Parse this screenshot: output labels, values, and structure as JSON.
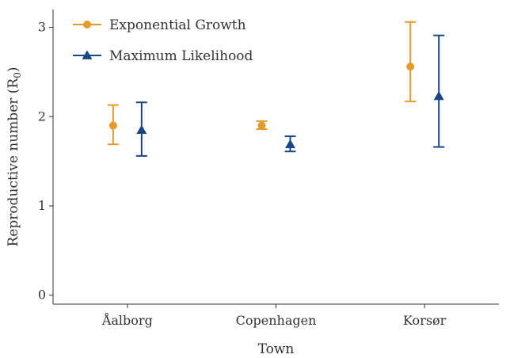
{
  "chart_data": {
    "type": "scatter",
    "xlabel": "Town",
    "ylabel_main": "Reproductive number (R",
    "ylabel_sub": "0",
    "ylabel_close": ")",
    "categories": [
      "Åalborg",
      "Copenhagen",
      "Korsør"
    ],
    "ylim": [
      -0.1,
      3.2
    ],
    "yticks": [
      0,
      1,
      2,
      3
    ],
    "grid": false,
    "legend_position": "top-left",
    "series": [
      {
        "name": "Exponential Growth",
        "color": "#E69A2A",
        "marker": "circle",
        "values": [
          1.9,
          1.9,
          2.56
        ],
        "lower": [
          1.69,
          1.86,
          2.17
        ],
        "upper": [
          2.13,
          1.95,
          3.06
        ]
      },
      {
        "name": "Maximum Likelihood",
        "color": "#1A4784",
        "marker": "triangle",
        "values": [
          1.85,
          1.69,
          2.23
        ],
        "lower": [
          1.56,
          1.61,
          1.66
        ],
        "upper": [
          2.16,
          1.78,
          2.91
        ]
      }
    ]
  }
}
